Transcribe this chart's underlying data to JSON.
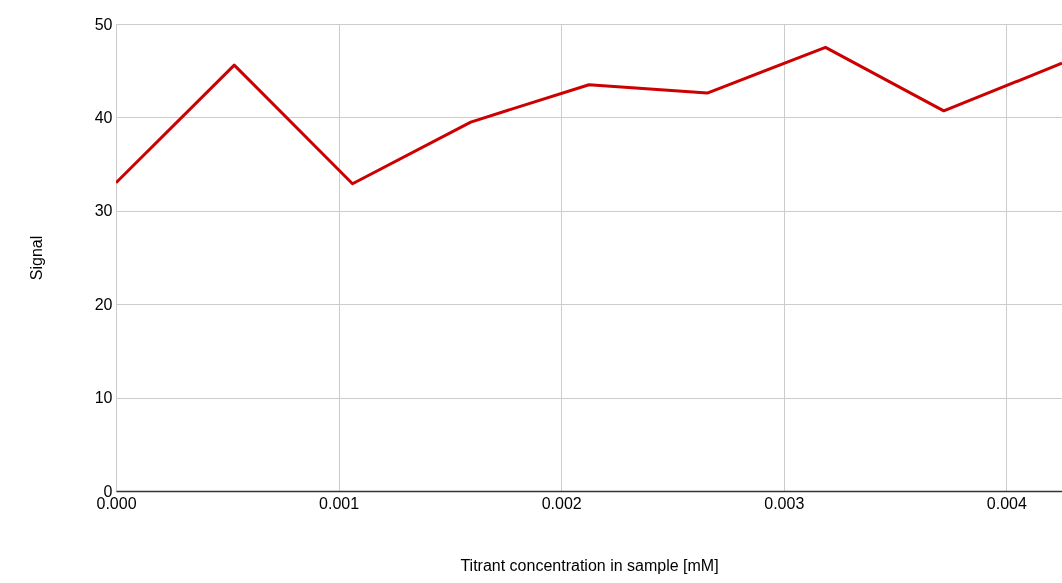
{
  "chart_data": {
    "type": "line",
    "xlabel": "Titrant concentration in sample [mM]",
    "ylabel": "Signal",
    "x": [
      0,
      0.00053125,
      0.0010625,
      0.00159375,
      0.002125,
      0.00265625,
      0.0031875,
      0.00371875,
      0.00425
    ],
    "series": [
      {
        "color": "#cc0000",
        "values": [
          33.0,
          45.6,
          32.9,
          39.5,
          43.5,
          42.6,
          47.5,
          40.7,
          45.8
        ]
      }
    ],
    "xlim": [
      0,
      0.00425
    ],
    "xticks": [
      {
        "value": 0,
        "label": "0.000"
      },
      {
        "value": 0.001,
        "label": "0.001"
      },
      {
        "value": 0.002,
        "label": "0.002"
      },
      {
        "value": 0.003,
        "label": "0.003"
      },
      {
        "value": 0.004,
        "label": "0.004"
      }
    ],
    "ylim": [
      0,
      50
    ],
    "yticks": [
      0,
      10,
      20,
      30,
      40,
      50
    ],
    "grid": true,
    "marker": "none",
    "line_style": "solid"
  }
}
